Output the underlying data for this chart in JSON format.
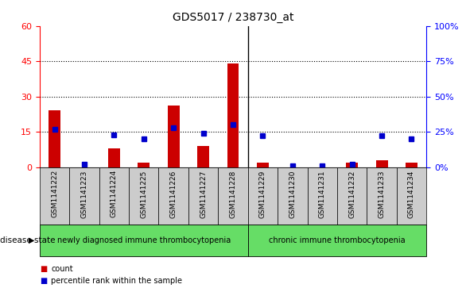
{
  "title": "GDS5017 / 238730_at",
  "samples": [
    "GSM1141222",
    "GSM1141223",
    "GSM1141224",
    "GSM1141225",
    "GSM1141226",
    "GSM1141227",
    "GSM1141228",
    "GSM1141229",
    "GSM1141230",
    "GSM1141231",
    "GSM1141232",
    "GSM1141233",
    "GSM1141234"
  ],
  "counts": [
    24,
    0,
    8,
    2,
    26,
    9,
    44,
    2,
    0,
    0,
    2,
    3,
    2
  ],
  "percentile_ranks": [
    27,
    2,
    23,
    20,
    28,
    24,
    30,
    22,
    1,
    1,
    2,
    22,
    20
  ],
  "groups": [
    {
      "label": "newly diagnosed immune thrombocytopenia",
      "start": 0,
      "end": 7,
      "color": "#66DD66"
    },
    {
      "label": "chronic immune thrombocytopenia",
      "start": 7,
      "end": 13,
      "color": "#66DD66"
    }
  ],
  "ylim_left": [
    0,
    60
  ],
  "ylim_right": [
    0,
    100
  ],
  "yticks_left": [
    0,
    15,
    30,
    45,
    60
  ],
  "yticks_right": [
    0,
    25,
    50,
    75,
    100
  ],
  "bar_color": "#CC0000",
  "marker_color": "#0000CC",
  "background_color": "#ffffff",
  "tick_area_bg": "#cccccc",
  "group_divider": 7,
  "bar_width": 0.4
}
